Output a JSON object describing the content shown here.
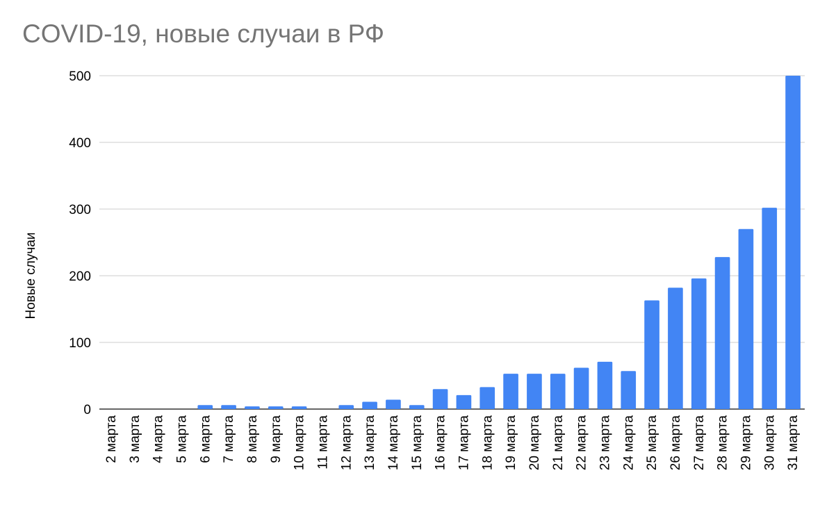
{
  "chart_data": {
    "type": "bar",
    "title": "COVID-19, новые случаи в РФ",
    "xlabel": "",
    "ylabel": "Новые случаи",
    "ylim": [
      0,
      500
    ],
    "yticks": [
      "0",
      "100",
      "200",
      "300",
      "400",
      "500"
    ],
    "grid": true,
    "color": "#4285f4",
    "categories": [
      "2 марта",
      "3 марта",
      "4 марта",
      "5 марта",
      "6 марта",
      "7 марта",
      "8 марта",
      "9 марта",
      "10 марта",
      "11 марта",
      "12 марта",
      "13 марта",
      "14 марта",
      "15 марта",
      "16 марта",
      "17 марта",
      "18 марта",
      "19 марта",
      "20 марта",
      "21 марта",
      "22 марта",
      "23 марта",
      "24 марта",
      "25 марта",
      "26 марта",
      "27 марта",
      "28 марта",
      "29 марта",
      "30 марта",
      "31 марта"
    ],
    "values": [
      0,
      0,
      0,
      0,
      6,
      6,
      4,
      4,
      4,
      0,
      6,
      11,
      14,
      6,
      30,
      21,
      33,
      53,
      53,
      53,
      62,
      71,
      57,
      163,
      182,
      196,
      228,
      270,
      302,
      500
    ]
  }
}
